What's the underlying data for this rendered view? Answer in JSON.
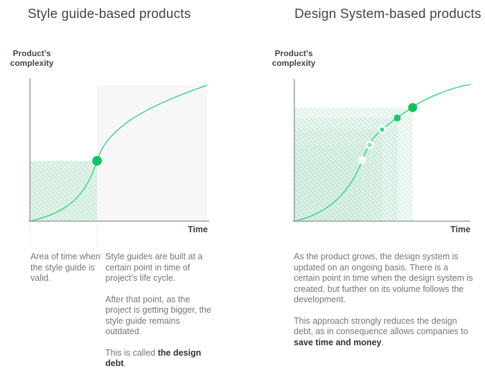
{
  "colors": {
    "curve_green": "#41d286",
    "dot_green": "#0ec464",
    "axis_gray": "#9aa1a6",
    "hatch_background": "#e4f5ec",
    "hatch_stripe": "#cfecdc",
    "debt_area_gray": "#f7f7f8",
    "guide_dotted_gray": "#cbd0d3"
  },
  "panels": [
    {
      "title": "Style guide-based products",
      "y_axis_label": "Product’s\ncomplexity",
      "x_axis_label": "Time",
      "caption_left": "Area of time when the style guide is valid.",
      "notes": {
        "p1": "Style guides are built at a certain point in time of project’s life cycle.",
        "p2": "After that point, as the project is getting bigger, the style guide remains outdated.",
        "p3_pre": "This is called ",
        "p3_bold": "the design debt",
        "p3_post": "."
      }
    },
    {
      "title": "Design System-based products",
      "y_axis_label": "Product’s\ncomplexity",
      "x_axis_label": "Time",
      "notes": {
        "p1": "As the product grows, the design system is updated on an ongoing basis. There is a certain point in time when the design system is created, but further on its volume follows the development.",
        "p2_pre": "This approach strongly reduces the design debt, as in consequence allows companies to ",
        "p2_bold": "save time and money",
        "p2_post": "."
      }
    }
  ],
  "chart_data": [
    {
      "type": "line",
      "title": "Style guide-based products",
      "xlabel": "Time",
      "ylabel": "Product’s complexity",
      "axes_numeric": false,
      "curve_shape": "s-growth",
      "curve_points_norm": [
        [
          0,
          0
        ],
        [
          0.15,
          0.05
        ],
        [
          0.3,
          0.17
        ],
        [
          0.379,
          0.444
        ],
        [
          0.55,
          0.72
        ],
        [
          0.78,
          0.9
        ],
        [
          1,
          1
        ]
      ],
      "regions": [
        {
          "name": "design-debt-area",
          "x": [
            0.379,
            1.0
          ],
          "y": [
            0,
            1.0
          ],
          "fill": "#f7f7f8"
        },
        {
          "name": "style-guide-valid-area",
          "x": [
            0.003,
            0.379
          ],
          "y": [
            0,
            0.444
          ],
          "fill": "url(#hatchL)"
        }
      ],
      "markers": [
        {
          "x": 0.379,
          "y": 0.444,
          "r": 7,
          "fill": "#0ec464"
        }
      ]
    },
    {
      "type": "line",
      "title": "Design System-based products",
      "xlabel": "Time",
      "ylabel": "Product’s complexity",
      "axes_numeric": false,
      "curve_shape": "s-growth",
      "curve_points_norm": [
        [
          0,
          0
        ],
        [
          0.18,
          0.06
        ],
        [
          0.3,
          0.2
        ],
        [
          0.385,
          0.447
        ],
        [
          0.427,
          0.558
        ],
        [
          0.498,
          0.67
        ],
        [
          0.584,
          0.756
        ],
        [
          0.671,
          0.832
        ],
        [
          1,
          1
        ]
      ],
      "regions": [
        {
          "name": "design-system-coverage-5",
          "x": [
            0,
            0.671
          ],
          "y": [
            0,
            0.832
          ],
          "fill": "url(#hatchR)"
        },
        {
          "name": "design-system-coverage-4",
          "x": [
            0,
            0.584
          ],
          "y": [
            0,
            0.756
          ],
          "fill": "url(#hatchR)"
        },
        {
          "name": "design-system-coverage-3",
          "x": [
            0,
            0.498
          ],
          "y": [
            0,
            0.67
          ],
          "fill": "url(#hatchR)"
        },
        {
          "name": "design-system-coverage-2",
          "x": [
            0,
            0.427
          ],
          "y": [
            0,
            0.558
          ],
          "fill": "url(#hatchR)"
        },
        {
          "name": "design-system-coverage-1",
          "x": [
            0,
            0.385
          ],
          "y": [
            0,
            0.447
          ],
          "fill": "url(#hatchR)"
        }
      ],
      "markers": [
        {
          "x": 0.385,
          "y": 0.447,
          "r": 4.5,
          "fill": "#f3faf6",
          "stroke": "#ffffff",
          "sw": 2.5
        },
        {
          "x": 0.427,
          "y": 0.558,
          "r": 4.5,
          "fill": "#90e1b4",
          "stroke": "#ffffff",
          "sw": 2.5
        },
        {
          "x": 0.498,
          "y": 0.67,
          "r": 4.5,
          "fill": "#44d688",
          "stroke": "#ffffff",
          "sw": 2.5
        },
        {
          "x": 0.584,
          "y": 0.756,
          "r": 5,
          "fill": "#19c968"
        },
        {
          "x": 0.671,
          "y": 0.832,
          "r": 6.5,
          "fill": "#0ec05e"
        }
      ]
    }
  ]
}
